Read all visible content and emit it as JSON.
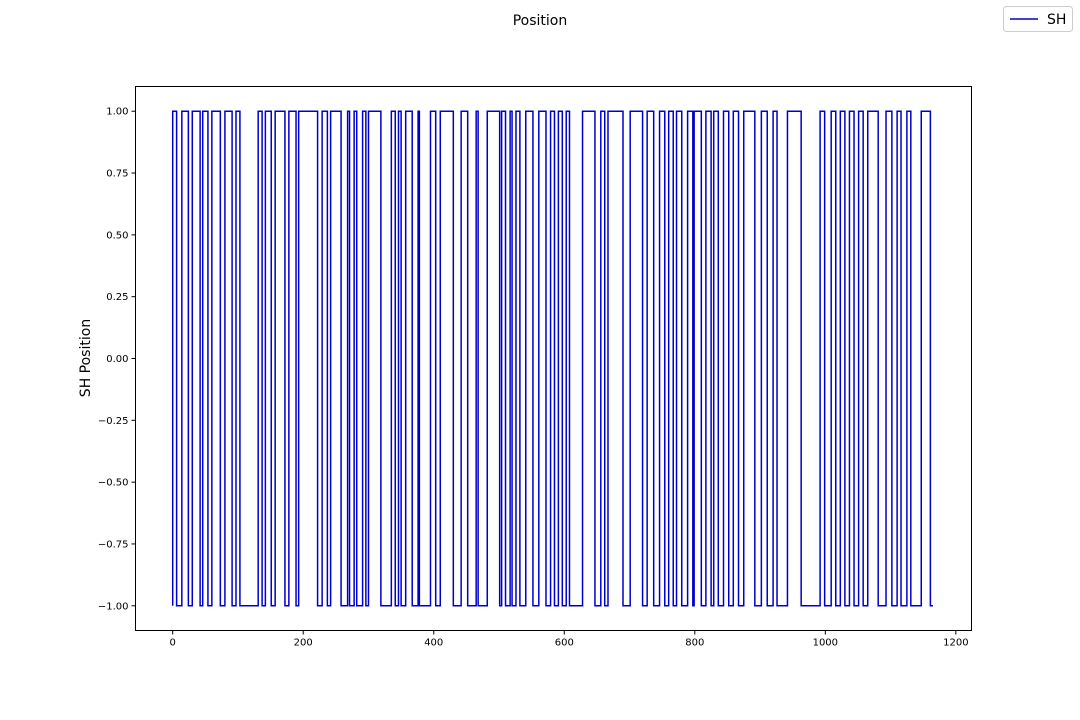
{
  "chart_data": {
    "type": "line",
    "title": "Position",
    "xlabel": "",
    "ylabel": "SH Position",
    "xlim": [
      -57,
      1224
    ],
    "ylim": [
      -1.1,
      1.1
    ],
    "xticks": [
      0,
      200,
      400,
      600,
      800,
      1000,
      1200
    ],
    "yticks": [
      -1.0,
      -0.75,
      -0.5,
      -0.25,
      0.0,
      0.25,
      0.5,
      0.75,
      1.0
    ],
    "ytick_labels": [
      "−1.00",
      "−0.75",
      "−0.50",
      "−0.25",
      "0.00",
      "0.25",
      "0.50",
      "0.75",
      "1.00"
    ],
    "xtick_labels": [
      "0",
      "200",
      "400",
      "600",
      "800",
      "1000",
      "1200"
    ],
    "grid": false,
    "legend_position": "top-right",
    "line_color": "#0000cc",
    "series": [
      {
        "name": "SH",
        "step": "post",
        "start_value": 1,
        "x_start": 0,
        "x_end": 1165,
        "transitions": [
          0,
          6,
          14,
          24,
          30,
          42,
          46,
          54,
          60,
          73,
          80,
          91,
          97,
          103,
          131,
          137,
          142,
          151,
          157,
          172,
          178,
          189,
          193,
          222,
          229,
          237,
          242,
          258,
          268,
          271,
          278,
          282,
          291,
          296,
          300,
          319,
          335,
          341,
          346,
          350,
          357,
          367,
          376,
          378,
          395,
          403,
          410,
          430,
          442,
          452,
          465,
          468,
          482,
          501,
          504,
          510,
          517,
          520,
          526,
          532,
          541,
          552,
          561,
          572,
          579,
          585,
          591,
          597,
          603,
          608,
          628,
          647,
          656,
          662,
          667,
          690,
          701,
          720,
          727,
          737,
          746,
          754,
          760,
          767,
          772,
          780,
          789,
          797,
          799,
          810,
          817,
          825,
          829,
          836,
          844,
          852,
          859,
          867,
          875,
          892,
          902,
          911,
          920,
          926,
          942,
          963,
          992,
          999,
          1009,
          1016,
          1023,
          1030,
          1037,
          1044,
          1051,
          1058,
          1065,
          1081,
          1093,
          1102,
          1110,
          1116,
          1125,
          1131,
          1147,
          1161
        ]
      }
    ]
  }
}
